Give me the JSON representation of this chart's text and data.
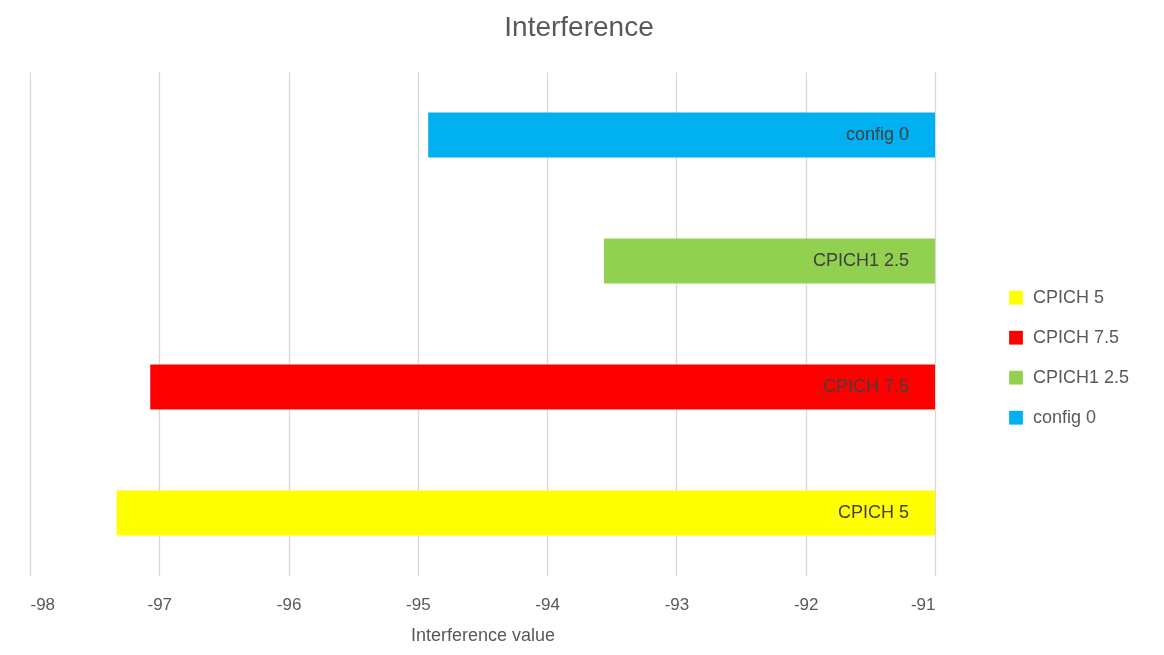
{
  "chart_data": {
    "type": "bar",
    "orientation": "horizontal",
    "title": "Interference",
    "xlabel": "Interference value",
    "categories": [
      null
    ],
    "series": [
      {
        "name": "CPICH 5",
        "color": "#ffff00",
        "values": [
          -97.33
        ],
        "value_labels": [
          "CPICH 5"
        ]
      },
      {
        "name": "CPICH 7.5",
        "color": "#ff0000",
        "values": [
          -97.07
        ],
        "value_labels": [
          "CPICH 7.5"
        ]
      },
      {
        "name": "CPICH1 2.5",
        "color": "#92d050",
        "values": [
          -93.56
        ],
        "value_labels": [
          "CPICH1 2.5"
        ]
      },
      {
        "name": "config 0",
        "color": "#00b0f0",
        "values": [
          -94.92
        ],
        "value_labels": [
          "config 0"
        ]
      }
    ],
    "xlim": [
      -98,
      -91
    ],
    "xticks": [
      -98,
      -97,
      -96,
      -95,
      -94,
      -93,
      -92,
      -91
    ],
    "grid": "x",
    "legend": "right"
  }
}
